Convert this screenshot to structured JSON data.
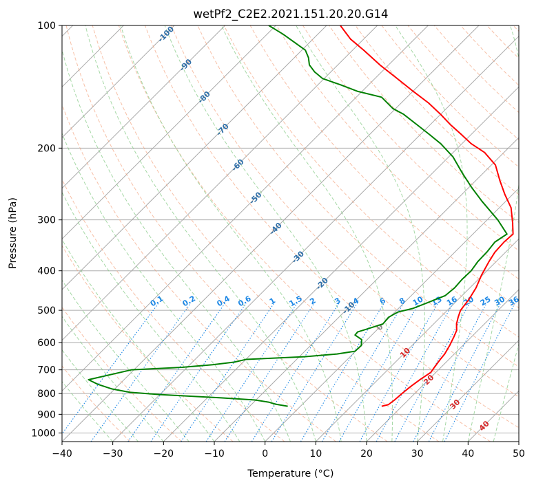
{
  "chart_data": {
    "type": "skew-t",
    "title": "wetPf2_C2E2.2021.151.20.20.G14",
    "xlabel": "Temperature (°C)",
    "ylabel": "Pressure (hPa)",
    "xlim": [
      -40,
      50
    ],
    "ylim": [
      1050,
      100
    ],
    "x_ticks": [
      -40,
      -30,
      -20,
      -10,
      0,
      10,
      20,
      30,
      40,
      50
    ],
    "x_tick_labels": [
      "−40",
      "−30",
      "−20",
      "−10",
      "0",
      "10",
      "20",
      "30",
      "40",
      "50"
    ],
    "y_ticks": [
      1000,
      900,
      800,
      700,
      600,
      500,
      400,
      300,
      200,
      100
    ],
    "y_tick_labels": [
      "1000",
      "900",
      "800",
      "700",
      "600",
      "500",
      "400",
      "300",
      "200",
      "100"
    ],
    "grid": true,
    "colors": {
      "temperature": "#ff0000",
      "dewpoint": "#008000",
      "isotherm": "#aaaaaa",
      "dry_adiabat": "#f4a582",
      "moist_adiabat": "#8fce8f",
      "mixing_ratio": "#1e88e5",
      "label_blue": "#2f6fa8",
      "label_red": "#d62728",
      "label_gray": "#888888"
    },
    "isotherm_labels": [
      {
        "text": "-100",
        "p": 105
      },
      {
        "text": "-90",
        "p": 125
      },
      {
        "text": "-80",
        "p": 150
      },
      {
        "text": "-70",
        "p": 180
      },
      {
        "text": "-60",
        "p": 220
      },
      {
        "text": "-50",
        "p": 265
      },
      {
        "text": "-40",
        "p": 315
      },
      {
        "text": "-30",
        "p": 370
      },
      {
        "text": "-20",
        "p": 430
      },
      {
        "text": "-10",
        "p": 493
      },
      {
        "text": "0",
        "p": 550
      },
      {
        "text": "10",
        "p": 635
      },
      {
        "text": "20",
        "p": 740
      },
      {
        "text": "30",
        "p": 850
      },
      {
        "text": "40",
        "p": 960
      }
    ],
    "mixing_ratio_labels": [
      "0.1",
      "0.2",
      "0.4",
      "0.6",
      "1",
      "1.5",
      "2",
      "3",
      "4",
      "6",
      "8",
      "10",
      "13",
      "16",
      "20",
      "25",
      "30",
      "36"
    ],
    "mixing_ratio_values": [
      0.1,
      0.2,
      0.4,
      0.6,
      1,
      1.5,
      2,
      3,
      4,
      6,
      8,
      10,
      13,
      16,
      20,
      25,
      30,
      36
    ],
    "temperature_profile": [
      [
        860,
        16
      ],
      [
        852,
        17
      ],
      [
        830,
        17.3
      ],
      [
        800,
        17.5
      ],
      [
        770,
        17.8
      ],
      [
        740,
        18.3
      ],
      [
        710,
        19.0
      ],
      [
        690,
        18.7
      ],
      [
        660,
        18.3
      ],
      [
        640,
        18.1
      ],
      [
        610,
        17.4
      ],
      [
        580,
        16.5
      ],
      [
        560,
        15.8
      ],
      [
        540,
        14.5
      ],
      [
        520,
        13.5
      ],
      [
        500,
        12.6
      ],
      [
        470,
        12.1
      ],
      [
        440,
        11.2
      ],
      [
        410,
        9.8
      ],
      [
        380,
        8.6
      ],
      [
        360,
        7.9
      ],
      [
        340,
        7.7
      ],
      [
        325,
        7.9
      ],
      [
        305,
        5.6
      ],
      [
        280,
        2.3
      ],
      [
        260,
        -1.5
      ],
      [
        240,
        -5.3
      ],
      [
        220,
        -9.2
      ],
      [
        205,
        -13.8
      ],
      [
        195,
        -18.2
      ],
      [
        185,
        -22.0
      ],
      [
        175,
        -26.1
      ],
      [
        165,
        -30.1
      ],
      [
        155,
        -34.6
      ],
      [
        145,
        -40.0
      ],
      [
        135,
        -45.6
      ],
      [
        125,
        -51.7
      ],
      [
        115,
        -57.8
      ],
      [
        108,
        -62.6
      ],
      [
        100,
        -67.3
      ]
    ],
    "dewpoint_profile": [
      [
        860,
        -2.5
      ],
      [
        850,
        -5.3
      ],
      [
        840,
        -7.1
      ],
      [
        830,
        -10.2
      ],
      [
        820,
        -17.3
      ],
      [
        810,
        -25.7
      ],
      [
        805,
        -30.0
      ],
      [
        795,
        -36.3
      ],
      [
        780,
        -40.5
      ],
      [
        760,
        -44.2
      ],
      [
        740,
        -47.0
      ],
      [
        700,
        -40.5
      ],
      [
        690,
        -31.0
      ],
      [
        680,
        -25.5
      ],
      [
        670,
        -21.7
      ],
      [
        660,
        -20.0
      ],
      [
        650,
        -9.0
      ],
      [
        640,
        -3.1
      ],
      [
        630,
        -0.1
      ],
      [
        610,
        0.0
      ],
      [
        590,
        -1.1
      ],
      [
        575,
        -3.3
      ],
      [
        565,
        -3.4
      ],
      [
        555,
        -2.0
      ],
      [
        540,
        0.0
      ],
      [
        520,
        -0.2
      ],
      [
        505,
        0.6
      ],
      [
        495,
        2.8
      ],
      [
        480,
        4.5
      ],
      [
        460,
        6.7
      ],
      [
        440,
        7.0
      ],
      [
        420,
        6.8
      ],
      [
        400,
        6.9
      ],
      [
        380,
        6.4
      ],
      [
        360,
        6.3
      ],
      [
        340,
        5.9
      ],
      [
        325,
        6.7
      ],
      [
        300,
        2.1
      ],
      [
        270,
        -4.7
      ],
      [
        250,
        -9.4
      ],
      [
        230,
        -14.2
      ],
      [
        210,
        -19.2
      ],
      [
        195,
        -24.2
      ],
      [
        185,
        -28.3
      ],
      [
        175,
        -32.7
      ],
      [
        165,
        -37.4
      ],
      [
        160,
        -40.5
      ],
      [
        150,
        -45.0
      ],
      [
        145,
        -51.0
      ],
      [
        140,
        -55.4
      ],
      [
        135,
        -60.3
      ],
      [
        130,
        -63.2
      ],
      [
        125,
        -65.6
      ],
      [
        120,
        -67.2
      ],
      [
        115,
        -69.3
      ],
      [
        110,
        -73.0
      ],
      [
        105,
        -76.9
      ],
      [
        100,
        -81.4
      ]
    ]
  }
}
